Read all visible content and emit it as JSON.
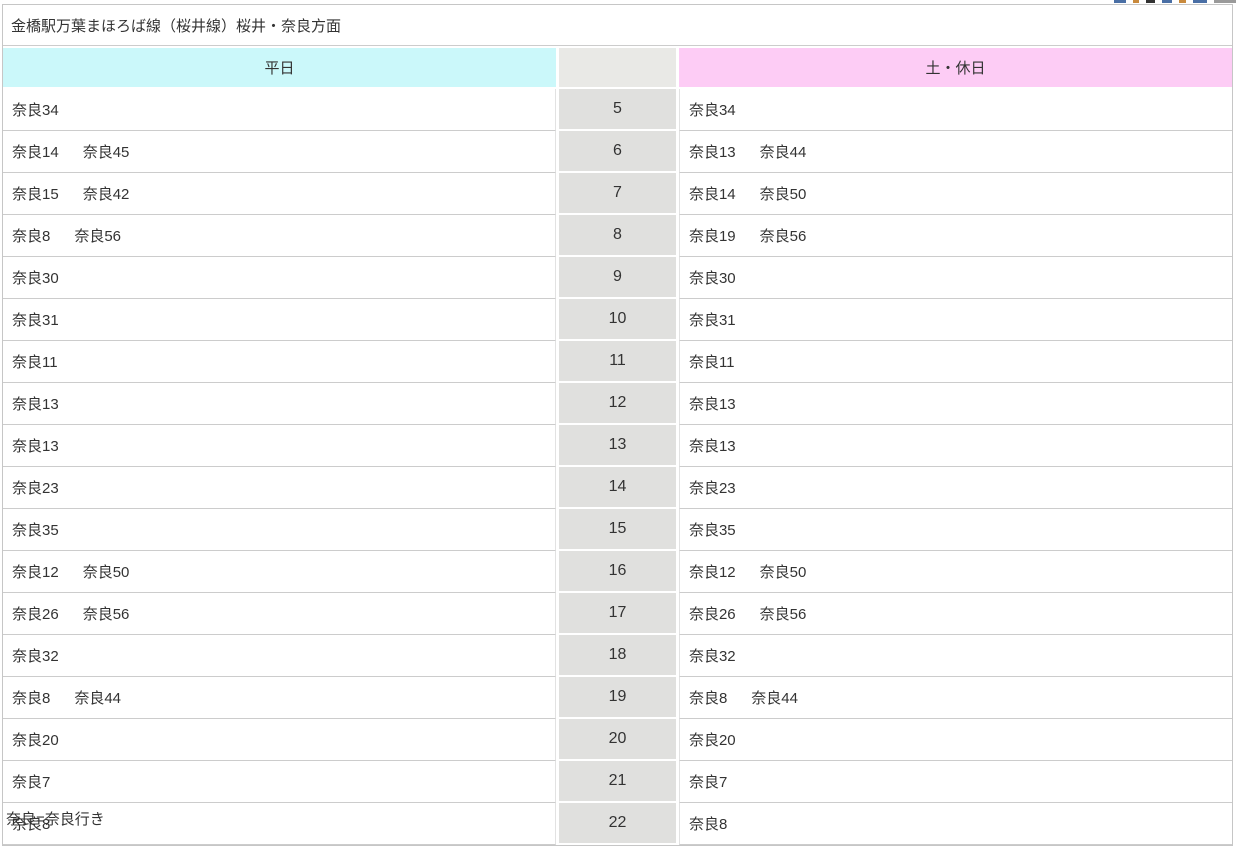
{
  "clipped_chrome": {
    "fragments": [
      {
        "color": "#4a6fa5",
        "width": 12
      },
      {
        "color": "#c98a3d",
        "width": 6
      },
      {
        "color": "#333333",
        "width": 9
      },
      {
        "color": "#4a6fa5",
        "width": 10
      },
      {
        "color": "#c98a3d",
        "width": 7
      },
      {
        "color": "#4a6fa5",
        "width": 14
      },
      {
        "color": "#9a9a9a",
        "width": 22
      }
    ]
  },
  "timetable": {
    "title": "金橋駅万葉まほろば線（桜井線）桜井・奈良方面",
    "header": {
      "weekday": "平日",
      "hour_label": "",
      "weekend": "土・休日"
    },
    "colors": {
      "weekday_header_bg": "#cbf8fa",
      "weekend_header_bg": "#fdccf5",
      "hour_header_bg": "#e9e9e6",
      "hour_cell_bg": "#e0e0de"
    },
    "rows": [
      {
        "hour": "5",
        "weekday": [
          "奈良34"
        ],
        "weekend": [
          "奈良34"
        ]
      },
      {
        "hour": "6",
        "weekday": [
          "奈良14",
          "奈良45"
        ],
        "weekend": [
          "奈良13",
          "奈良44"
        ]
      },
      {
        "hour": "7",
        "weekday": [
          "奈良15",
          "奈良42"
        ],
        "weekend": [
          "奈良14",
          "奈良50"
        ]
      },
      {
        "hour": "8",
        "weekday": [
          "奈良8",
          "奈良56"
        ],
        "weekend": [
          "奈良19",
          "奈良56"
        ]
      },
      {
        "hour": "9",
        "weekday": [
          "奈良30"
        ],
        "weekend": [
          "奈良30"
        ]
      },
      {
        "hour": "10",
        "weekday": [
          "奈良31"
        ],
        "weekend": [
          "奈良31"
        ]
      },
      {
        "hour": "11",
        "weekday": [
          "奈良11"
        ],
        "weekend": [
          "奈良11"
        ]
      },
      {
        "hour": "12",
        "weekday": [
          "奈良13"
        ],
        "weekend": [
          "奈良13"
        ]
      },
      {
        "hour": "13",
        "weekday": [
          "奈良13"
        ],
        "weekend": [
          "奈良13"
        ]
      },
      {
        "hour": "14",
        "weekday": [
          "奈良23"
        ],
        "weekend": [
          "奈良23"
        ]
      },
      {
        "hour": "15",
        "weekday": [
          "奈良35"
        ],
        "weekend": [
          "奈良35"
        ]
      },
      {
        "hour": "16",
        "weekday": [
          "奈良12",
          "奈良50"
        ],
        "weekend": [
          "奈良12",
          "奈良50"
        ]
      },
      {
        "hour": "17",
        "weekday": [
          "奈良26",
          "奈良56"
        ],
        "weekend": [
          "奈良26",
          "奈良56"
        ]
      },
      {
        "hour": "18",
        "weekday": [
          "奈良32"
        ],
        "weekend": [
          "奈良32"
        ]
      },
      {
        "hour": "19",
        "weekday": [
          "奈良8",
          "奈良44"
        ],
        "weekend": [
          "奈良8",
          "奈良44"
        ]
      },
      {
        "hour": "20",
        "weekday": [
          "奈良20"
        ],
        "weekend": [
          "奈良20"
        ]
      },
      {
        "hour": "21",
        "weekday": [
          "奈良7"
        ],
        "weekend": [
          "奈良7"
        ]
      },
      {
        "hour": "22",
        "weekday": [
          "奈良8"
        ],
        "weekend": [
          "奈良8"
        ]
      }
    ],
    "note": "奈良=奈良行き"
  }
}
